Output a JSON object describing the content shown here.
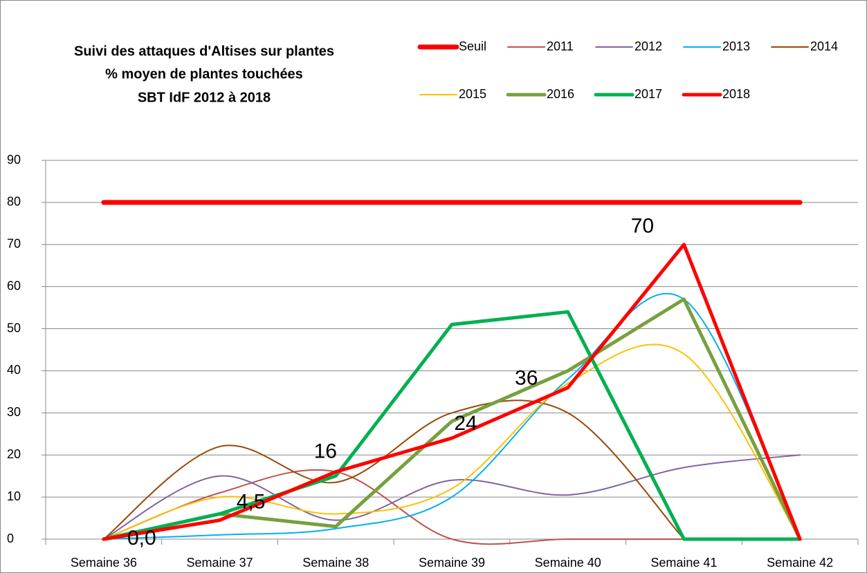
{
  "chart_data": {
    "type": "line",
    "title": [
      "Suivi des attaques d'Altises sur plantes",
      "% moyen de plantes touchées",
      "SBT IdF 2012 à 2018"
    ],
    "categories": [
      "Semaine 36",
      "Semaine 37",
      "Semaine 38",
      "Semaine 39",
      "Semaine 40",
      "Semaine 41",
      "Semaine 42"
    ],
    "ylim": [
      0,
      90
    ],
    "yticks": [
      0,
      10,
      20,
      30,
      40,
      50,
      60,
      70,
      80,
      90
    ],
    "grid": true,
    "series": [
      {
        "name": "Seuil",
        "color": "#ff0000",
        "width": 7,
        "smooth": false,
        "values": [
          80,
          80,
          80,
          80,
          80,
          80,
          80
        ]
      },
      {
        "name": "2011",
        "color": "#c0504d",
        "width": 2,
        "smooth": true,
        "values": [
          0,
          11,
          16,
          0,
          0,
          0,
          null
        ]
      },
      {
        "name": "2012",
        "color": "#8064a2",
        "width": 2,
        "smooth": true,
        "values": [
          0,
          15,
          4.5,
          14,
          10.5,
          17,
          20
        ]
      },
      {
        "name": "2013",
        "color": "#00b0f0",
        "width": 2,
        "smooth": true,
        "values": [
          0,
          1,
          2.5,
          10,
          38,
          57,
          0
        ]
      },
      {
        "name": "2014",
        "color": "#984807",
        "width": 2,
        "smooth": true,
        "values": [
          0,
          22,
          13.5,
          30,
          30,
          0,
          null
        ]
      },
      {
        "name": "2015",
        "color": "#ffc000",
        "width": 2,
        "smooth": true,
        "values": [
          0,
          10,
          6,
          12,
          37,
          44,
          0
        ]
      },
      {
        "name": "2016",
        "color": "#77a040",
        "width": 5,
        "smooth": false,
        "values": [
          0,
          6,
          3,
          28,
          40,
          57,
          0
        ]
      },
      {
        "name": "2017",
        "color": "#00b050",
        "width": 5,
        "smooth": false,
        "values": [
          0,
          6,
          15,
          51,
          54,
          0,
          0
        ]
      },
      {
        "name": "2018",
        "color": "#ff0000",
        "width": 5,
        "smooth": false,
        "values": [
          0,
          4.5,
          16,
          24,
          36,
          70,
          0
        ],
        "value_labels": [
          "0,0",
          "4,5",
          "16",
          "24",
          "36",
          "70",
          null
        ]
      }
    ]
  }
}
